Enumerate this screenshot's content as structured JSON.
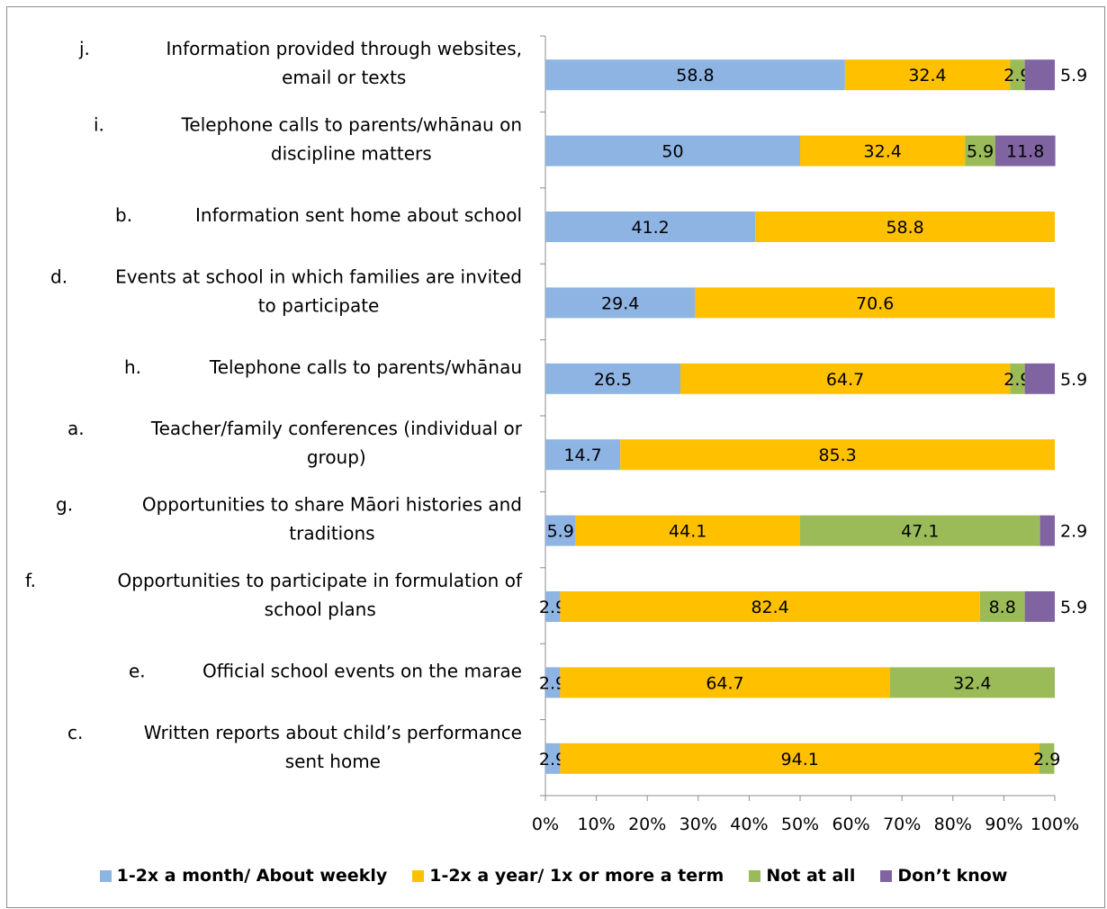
{
  "chart_data": {
    "type": "bar",
    "orientation": "horizontal",
    "stacked": true,
    "percent_stacked": true,
    "categories": [
      {
        "letter": "j.",
        "lines": [
          "Information provided through websites,",
          "email or texts"
        ]
      },
      {
        "letter": "i.",
        "lines": [
          "Telephone calls to parents/whānau on",
          "discipline matters"
        ]
      },
      {
        "letter": "b.",
        "lines": [
          "Information sent home about school"
        ]
      },
      {
        "letter": "d.",
        "lines": [
          "Events at school in which families are invited",
          "to participate"
        ]
      },
      {
        "letter": "h.",
        "lines": [
          "Telephone calls to parents/whānau"
        ]
      },
      {
        "letter": "a.",
        "lines": [
          "Teacher/family conferences (individual or",
          "group)"
        ]
      },
      {
        "letter": "g.",
        "lines": [
          "Opportunities to share Māori histories and",
          "traditions"
        ]
      },
      {
        "letter": "f.",
        "lines": [
          "Opportunities to participate in formulation of",
          "school plans"
        ]
      },
      {
        "letter": "e.",
        "lines": [
          "Official school events on the marae"
        ]
      },
      {
        "letter": "c.",
        "lines": [
          "Written reports about child’s performance",
          "sent home"
        ]
      }
    ],
    "series": [
      {
        "name": "1-2x a month/ About weekly",
        "color": "#8eb4e3",
        "values": [
          58.8,
          50,
          41.2,
          29.4,
          26.5,
          14.7,
          5.9,
          2.9,
          2.9,
          2.9
        ]
      },
      {
        "name": "1-2x a year/ 1x or more a term",
        "color": "#ffc000",
        "values": [
          32.4,
          32.4,
          58.8,
          70.6,
          64.7,
          85.3,
          44.1,
          82.4,
          64.7,
          94.1
        ]
      },
      {
        "name": "Not at all",
        "color": "#9bbb59",
        "values": [
          2.9,
          5.9,
          null,
          null,
          2.9,
          null,
          47.1,
          8.8,
          32.4,
          2.9
        ]
      },
      {
        "name": "Don’t know",
        "color": "#8064a2",
        "values": [
          5.9,
          11.8,
          null,
          null,
          5.9,
          null,
          2.9,
          5.9,
          null,
          null
        ]
      }
    ],
    "x_ticks": [
      "0%",
      "10%",
      "20%",
      "30%",
      "40%",
      "50%",
      "60%",
      "70%",
      "80%",
      "90%",
      "100%"
    ],
    "xlim": [
      0,
      100
    ],
    "legend_position": "bottom",
    "grid": false
  }
}
